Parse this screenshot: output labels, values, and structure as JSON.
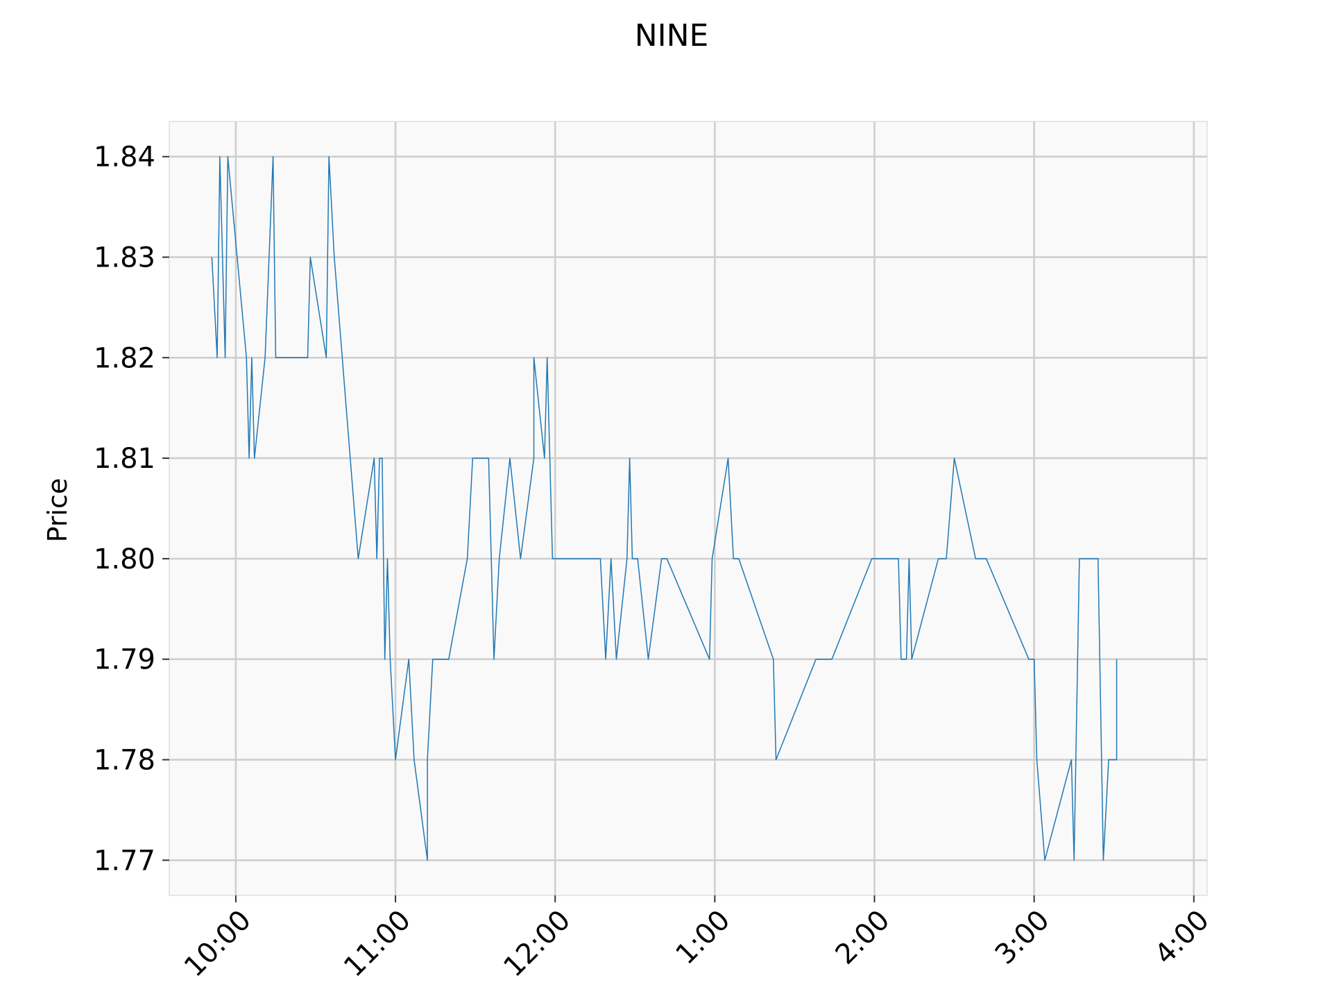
{
  "colors": {
    "background": "#ffffff",
    "plot_background": "#f9f9f9",
    "plot_border": "#e6e6e6",
    "grid": "#cfcfcf",
    "series_line": "#1f77b4",
    "text": "#000000"
  },
  "chart_data": {
    "type": "line",
    "title": "NINE",
    "xlabel": "",
    "ylabel": "Price",
    "grid": true,
    "legend": "none",
    "x_unit": "time of day",
    "x_ticks": [
      "10:00",
      "11:00",
      "12:00",
      "1:00",
      "2:00",
      "3:00",
      "4:00"
    ],
    "x_tick_times": [
      "10:00",
      "11:00",
      "12:00",
      "13:00",
      "14:00",
      "15:00",
      "16:00"
    ],
    "xlim": [
      "09:35",
      "16:05"
    ],
    "y_ticks": [
      "1.77",
      "1.78",
      "1.79",
      "1.80",
      "1.81",
      "1.82",
      "1.83",
      "1.84"
    ],
    "ylim": [
      1.7665,
      1.8435
    ],
    "series": [
      {
        "x": [
          "09:51",
          "09:53",
          "09:54",
          "09:56",
          "09:57",
          "10:04",
          "10:05",
          "10:06",
          "10:07",
          "10:11",
          "10:14",
          "10:15",
          "10:27",
          "10:28",
          "10:34",
          "10:35",
          "10:37",
          "10:46",
          "10:52",
          "10:53",
          "10:54",
          "10:55",
          "10:56",
          "10:57",
          "10:58",
          "11:00",
          "11:05",
          "11:07",
          "11:12",
          "11:12",
          "11:14",
          "11:20",
          "11:27",
          "11:29",
          "11:35",
          "11:37",
          "11:39",
          "11:43",
          "11:47",
          "11:52",
          "11:52",
          "11:56",
          "11:57",
          "11:59",
          "12:17",
          "12:19",
          "12:21",
          "12:23",
          "12:27",
          "12:28",
          "12:29",
          "12:31",
          "12:35",
          "12:40",
          "12:42",
          "12:58",
          "12:59",
          "13:05",
          "13:07",
          "13:09",
          "13:22",
          "13:23",
          "13:38",
          "13:44",
          "13:59",
          "14:09",
          "14:10",
          "14:12",
          "14:13",
          "14:14",
          "14:24",
          "14:27",
          "14:30",
          "14:38",
          "14:40",
          "14:42",
          "14:58",
          "15:00",
          "15:01",
          "15:04",
          "15:14",
          "15:15",
          "15:17",
          "15:18",
          "15:24",
          "15:26",
          "15:28",
          "15:31",
          "15:31"
        ],
        "y": [
          1.83,
          1.82,
          1.84,
          1.82,
          1.84,
          1.82,
          1.81,
          1.82,
          1.81,
          1.82,
          1.84,
          1.82,
          1.82,
          1.83,
          1.82,
          1.84,
          1.83,
          1.8,
          1.81,
          1.8,
          1.81,
          1.81,
          1.79,
          1.8,
          1.79,
          1.78,
          1.79,
          1.78,
          1.77,
          1.78,
          1.79,
          1.79,
          1.8,
          1.81,
          1.81,
          1.79,
          1.8,
          1.81,
          1.8,
          1.81,
          1.82,
          1.81,
          1.82,
          1.8,
          1.8,
          1.79,
          1.8,
          1.79,
          1.8,
          1.81,
          1.8,
          1.8,
          1.79,
          1.8,
          1.8,
          1.79,
          1.8,
          1.81,
          1.8,
          1.8,
          1.79,
          1.78,
          1.79,
          1.79,
          1.8,
          1.8,
          1.79,
          1.79,
          1.8,
          1.79,
          1.8,
          1.8,
          1.81,
          1.8,
          1.8,
          1.8,
          1.79,
          1.79,
          1.78,
          1.77,
          1.78,
          1.77,
          1.8,
          1.8,
          1.8,
          1.77,
          1.78,
          1.78,
          1.79
        ]
      }
    ]
  }
}
